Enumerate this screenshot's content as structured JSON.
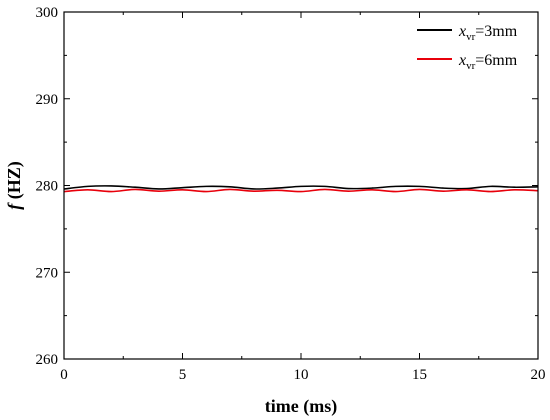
{
  "chart_data": {
    "type": "line",
    "title": "",
    "xlabel": "time (ms)",
    "ylabel": "f (HZ)",
    "ylabel_parts": {
      "var": "f",
      "unit": " (HZ)"
    },
    "xlim": [
      0,
      20
    ],
    "ylim": [
      260,
      300
    ],
    "xticks": [
      0,
      5,
      10,
      15,
      20
    ],
    "yticks": [
      260,
      270,
      280,
      290,
      300
    ],
    "grid": false,
    "legend_position": "top-right",
    "series": [
      {
        "name": "xvr=3mm",
        "legend": {
          "var": "x",
          "sub": "vr",
          "rest": "=3mm"
        },
        "color": "#000000",
        "x": [
          0,
          1,
          2,
          3,
          4,
          5,
          6,
          7,
          8,
          9,
          10,
          11,
          12,
          13,
          14,
          15,
          16,
          17,
          18,
          19,
          20
        ],
        "y": [
          279.6,
          279.9,
          279.95,
          279.8,
          279.6,
          279.75,
          279.9,
          279.85,
          279.6,
          279.7,
          279.9,
          279.9,
          279.65,
          279.7,
          279.9,
          279.9,
          279.7,
          279.65,
          279.9,
          279.8,
          279.85
        ]
      },
      {
        "name": "xvr=6mm",
        "legend": {
          "var": "x",
          "sub": "vr",
          "rest": "=6mm"
        },
        "color": "#e8000b",
        "x": [
          0,
          1,
          2,
          3,
          4,
          5,
          6,
          7,
          8,
          9,
          10,
          11,
          12,
          13,
          14,
          15,
          16,
          17,
          18,
          19,
          20
        ],
        "y": [
          279.3,
          279.5,
          279.3,
          279.55,
          279.35,
          279.5,
          279.3,
          279.55,
          279.35,
          279.45,
          279.3,
          279.55,
          279.35,
          279.5,
          279.3,
          279.55,
          279.35,
          279.5,
          279.3,
          279.5,
          279.4
        ]
      }
    ]
  }
}
